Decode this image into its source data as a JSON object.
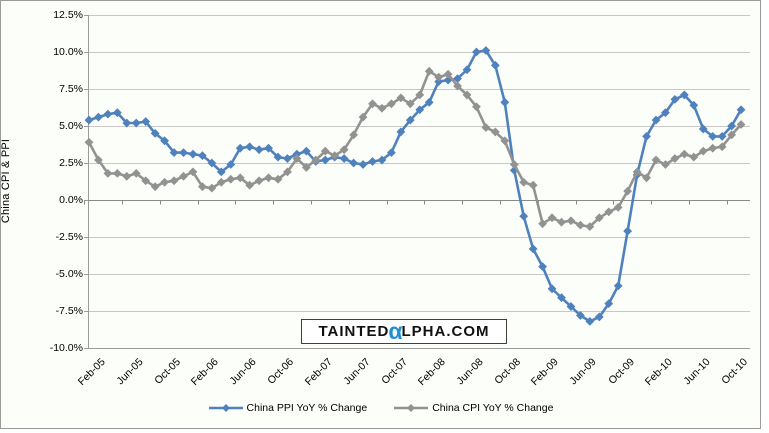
{
  "chart_data": {
    "type": "line",
    "title": "",
    "ylabel": "China CPI & PPI",
    "ylim": [
      -10,
      12.5
    ],
    "ytick_step": 2.5,
    "yticks": [
      {
        "value": 12.5,
        "label": "12.5%"
      },
      {
        "value": 10.0,
        "label": "10.0%"
      },
      {
        "value": 7.5,
        "label": "7.5%"
      },
      {
        "value": 5.0,
        "label": "5.0%"
      },
      {
        "value": 2.5,
        "label": "2.5%"
      },
      {
        "value": 0.0,
        "label": "0.0%"
      },
      {
        "value": -2.5,
        "label": "-2.5%"
      },
      {
        "value": -5.0,
        "label": "-5.0%"
      },
      {
        "value": -7.5,
        "label": "-7.5%"
      },
      {
        "value": -10.0,
        "label": "-10.0%"
      }
    ],
    "x": [
      "Feb-05",
      "Mar-05",
      "Apr-05",
      "May-05",
      "Jun-05",
      "Jul-05",
      "Aug-05",
      "Sep-05",
      "Oct-05",
      "Nov-05",
      "Dec-05",
      "Jan-06",
      "Feb-06",
      "Mar-06",
      "Apr-06",
      "May-06",
      "Jun-06",
      "Jul-06",
      "Aug-06",
      "Sep-06",
      "Oct-06",
      "Nov-06",
      "Dec-06",
      "Jan-07",
      "Feb-07",
      "Mar-07",
      "Apr-07",
      "May-07",
      "Jun-07",
      "Jul-07",
      "Aug-07",
      "Sep-07",
      "Oct-07",
      "Nov-07",
      "Dec-07",
      "Jan-08",
      "Feb-08",
      "Mar-08",
      "Apr-08",
      "May-08",
      "Jun-08",
      "Jul-08",
      "Aug-08",
      "Sep-08",
      "Oct-08",
      "Nov-08",
      "Dec-08",
      "Jan-09",
      "Feb-09",
      "Mar-09",
      "Apr-09",
      "May-09",
      "Jun-09",
      "Jul-09",
      "Aug-09",
      "Sep-09",
      "Oct-09",
      "Nov-09",
      "Dec-09",
      "Jan-10",
      "Feb-10",
      "Mar-10",
      "Apr-10",
      "May-10",
      "Jun-10",
      "Jul-10",
      "Aug-10",
      "Sep-10",
      "Oct-10",
      "Nov-10"
    ],
    "xtick_every": 4,
    "xtick_labels": [
      "Feb-05",
      "Jun-05",
      "Oct-05",
      "Feb-06",
      "Jun-06",
      "Oct-06",
      "Feb-07",
      "Jun-07",
      "Oct-07",
      "Feb-08",
      "Jun-08",
      "Oct-08",
      "Feb-09",
      "Jun-09",
      "Oct-09",
      "Feb-10",
      "Jun-10",
      "Oct-10"
    ],
    "grid": true,
    "legend_position": "bottom",
    "marker": "diamond",
    "series": [
      {
        "name": "China PPI YoY % Change",
        "color": "#4F81BD",
        "values": [
          5.4,
          5.6,
          5.8,
          5.9,
          5.2,
          5.2,
          5.3,
          4.5,
          4.0,
          3.2,
          3.2,
          3.1,
          3.0,
          2.5,
          1.9,
          2.4,
          3.5,
          3.6,
          3.4,
          3.5,
          2.9,
          2.8,
          3.1,
          3.3,
          2.6,
          2.7,
          2.9,
          2.8,
          2.5,
          2.4,
          2.6,
          2.7,
          3.2,
          4.6,
          5.4,
          6.1,
          6.6,
          8.0,
          8.1,
          8.2,
          8.8,
          10.0,
          10.1,
          9.1,
          6.6,
          2.0,
          -1.1,
          -3.3,
          -4.5,
          -6.0,
          -6.6,
          -7.2,
          -7.8,
          -8.2,
          -7.9,
          -7.0,
          -5.8,
          -2.1,
          1.7,
          4.3,
          5.4,
          5.9,
          6.8,
          7.1,
          6.4,
          4.8,
          4.3,
          4.3,
          5.0,
          6.1
        ]
      },
      {
        "name": "China CPI YoY % Change",
        "color": "#929292",
        "values": [
          3.9,
          2.7,
          1.8,
          1.8,
          1.6,
          1.8,
          1.3,
          0.9,
          1.2,
          1.3,
          1.6,
          1.9,
          0.9,
          0.8,
          1.2,
          1.4,
          1.5,
          1.0,
          1.3,
          1.5,
          1.4,
          1.9,
          2.8,
          2.2,
          2.7,
          3.3,
          3.0,
          3.4,
          4.4,
          5.6,
          6.5,
          6.2,
          6.5,
          6.9,
          6.5,
          7.1,
          8.7,
          8.3,
          8.5,
          7.7,
          7.1,
          6.3,
          4.9,
          4.6,
          4.0,
          2.4,
          1.2,
          1.0,
          -1.6,
          -1.2,
          -1.5,
          -1.4,
          -1.7,
          -1.8,
          -1.2,
          -0.8,
          -0.5,
          0.6,
          1.9,
          1.5,
          2.7,
          2.4,
          2.8,
          3.1,
          2.9,
          3.3,
          3.5,
          3.6,
          4.4,
          5.1
        ]
      }
    ],
    "colors": {
      "gridline": "#c8c8c8",
      "axis": "#9b9b9b",
      "zero_axis": "#8a8a8a",
      "background": "#fcfefa"
    }
  },
  "watermark": {
    "part1": "TAINTED",
    "alpha": "α",
    "part2": "LPHA.COM",
    "alpha_color": "#1E8FD5"
  }
}
